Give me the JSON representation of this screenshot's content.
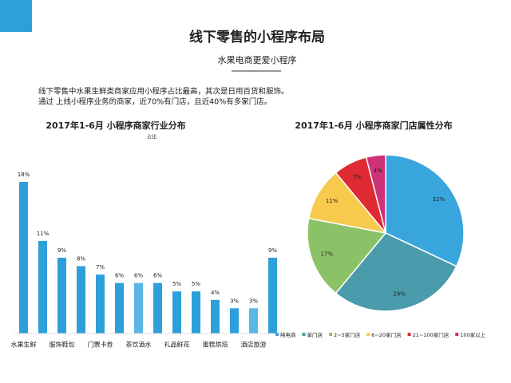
{
  "slide": {
    "title": "线下零售的小程序布局",
    "subtitle": "水果电商更爱小程序",
    "text": [
      "线下零售中水果生鲜类商家应用小程序占比最高，其次是日用百货和服饰。",
      "通过 上线小程序业务的商家，近70%有门店，且近40%有多家门店。"
    ]
  },
  "chart_data": [
    {
      "type": "bar",
      "title": "2017年1-6月 小程序商家行业分布",
      "subtitle": "占比",
      "categories": [
        "水果生鲜",
        null,
        "服饰鞋包",
        null,
        "门票卡券",
        null,
        "茶饮酒水",
        null,
        "礼品鲜花",
        null,
        "蛋糕烘焙",
        null,
        "酒店旅游",
        null
      ],
      "values": [
        18,
        11,
        9,
        8,
        7,
        6,
        6,
        6,
        5,
        5,
        4,
        3,
        3,
        9
      ],
      "value_labels": [
        "18%",
        "11%",
        "9%",
        "8%",
        "7%",
        "6%",
        "6%",
        "6%",
        "5%",
        "5%",
        "4%",
        "3%",
        "3%",
        "9%"
      ],
      "colors": [
        "#2d9fd9",
        "#2d9fd9",
        "#2d9fd9",
        "#2d9fd9",
        "#2d9fd9",
        "#2d9fd9",
        "#5ab6e3",
        "#2d9fd9",
        "#2d9fd9",
        "#2d9fd9",
        "#2d9fd9",
        "#2d9fd9",
        "#5ab6e3",
        "#2d9fd9"
      ]
    },
    {
      "type": "pie",
      "title": "2017年1-6月 小程序商家门店属性分布",
      "categories": [
        "纯电商",
        "单门店",
        "2~5家门店",
        "6~20家门店",
        "21~100家门店",
        "100家以上"
      ],
      "values": [
        32,
        29,
        17,
        11,
        7,
        4
      ],
      "value_labels": [
        "32%",
        "29%",
        "17%",
        "11%",
        "7%",
        "4%"
      ],
      "colors": [
        "#38a6dc",
        "#4a9bab",
        "#8cc267",
        "#f7c94d",
        "#df2a33",
        "#cf3279"
      ],
      "legend": "bottom"
    }
  ]
}
